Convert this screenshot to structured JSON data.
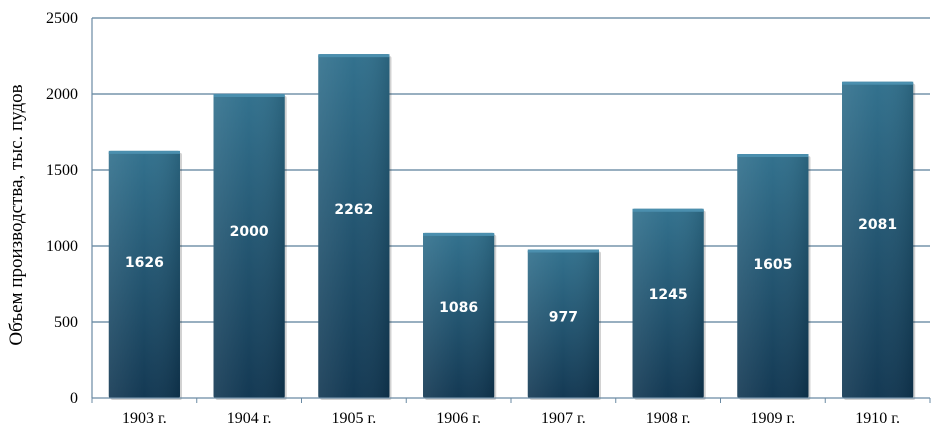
{
  "chart_data": {
    "type": "bar",
    "title": "",
    "xlabel": "",
    "ylabel": "Объем производства, тыс. пудов",
    "categories": [
      "1903 г.",
      "1904 г.",
      "1905 г.",
      "1906 г.",
      "1907 г.",
      "1908 г.",
      "1909 г.",
      "1910 г."
    ],
    "values": [
      1626,
      2000,
      2262,
      1086,
      977,
      1245,
      1605,
      2081
    ],
    "data_labels": [
      "1626",
      "2000",
      "2262",
      "1086",
      "977",
      "1245",
      "1605",
      "2081"
    ],
    "ylim": [
      0,
      2500
    ],
    "yticks": [
      0,
      500,
      1000,
      1500,
      2000,
      2500
    ],
    "ytick_labels": [
      "0",
      "500",
      "1000",
      "1500",
      "2000",
      "2500"
    ],
    "grid": true,
    "legend": "none",
    "colors": {
      "bar_top": "#2f6f8c",
      "bar_bottom": "#0f3550",
      "gridline": "#5b7f9a",
      "axis": "#6a8aa3"
    }
  }
}
